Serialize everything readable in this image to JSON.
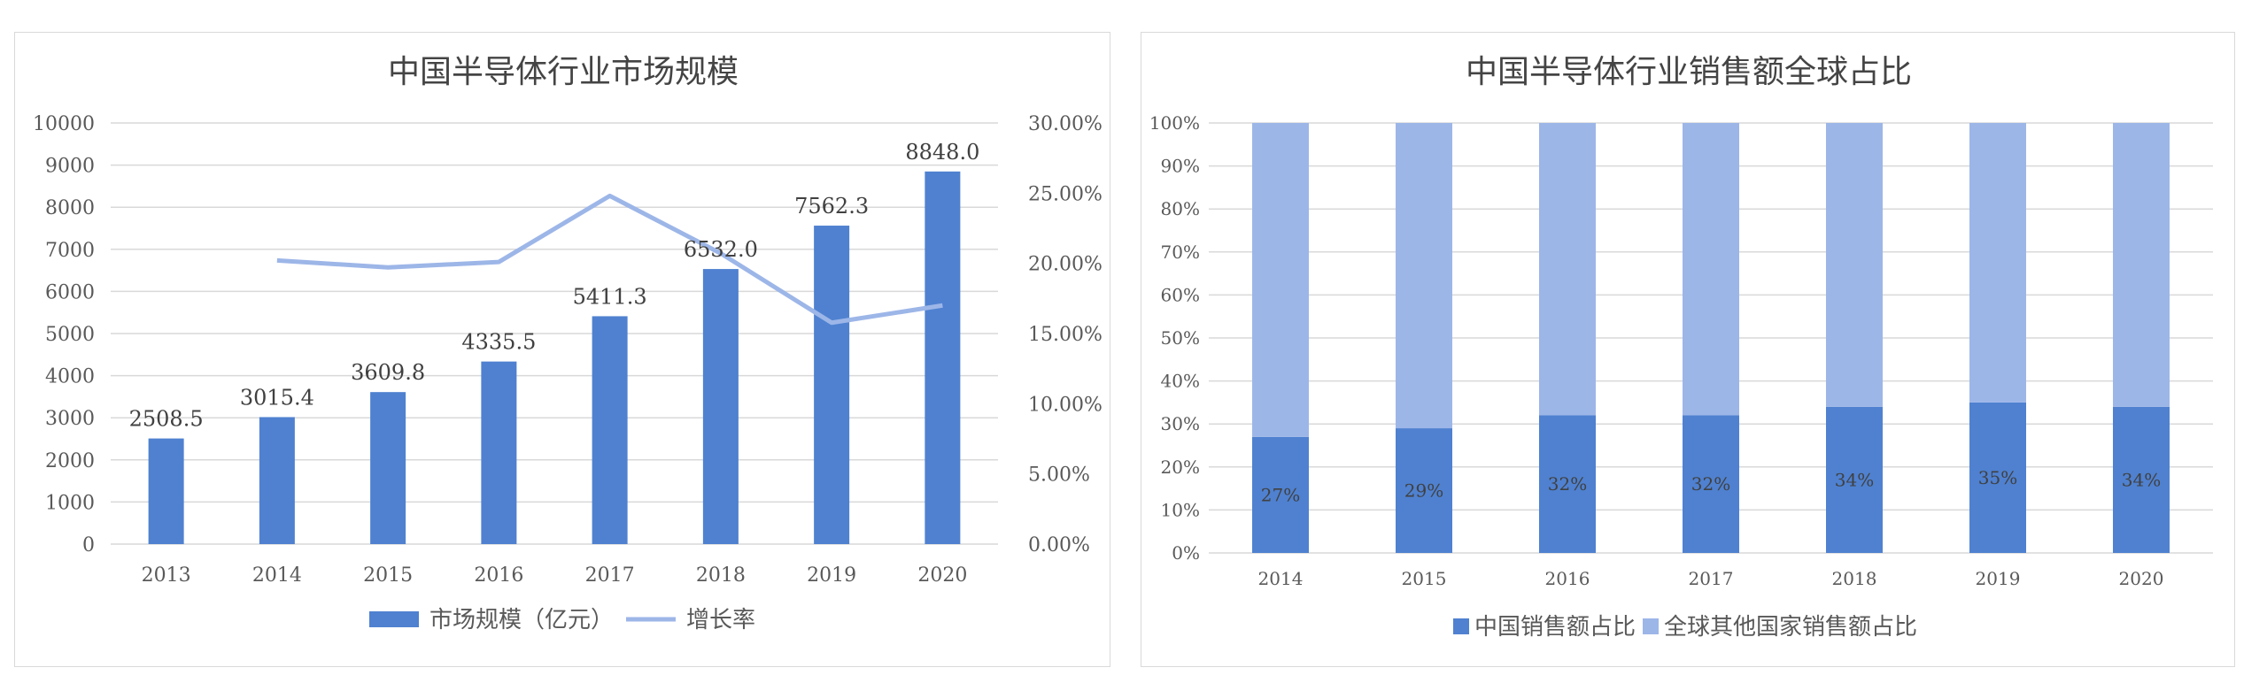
{
  "chart_data": [
    {
      "type": "bar",
      "title": "中国半导体行业市场规模",
      "categories": [
        "2013",
        "2014",
        "2015",
        "2016",
        "2017",
        "2018",
        "2019",
        "2020"
      ],
      "series": [
        {
          "name": "市场规模（亿元）",
          "type": "bar",
          "axis": "left",
          "values": [
            2508.5,
            3015.4,
            3609.8,
            4335.5,
            5411.3,
            6532.0,
            7562.3,
            8848.0
          ],
          "labels": [
            "2508.5",
            "3015.4",
            "3609.8",
            "4335.5",
            "5411.3",
            "6532.0",
            "7562.3",
            "8848.0"
          ],
          "color": "#4f81d0"
        },
        {
          "name": "增长率",
          "type": "line",
          "axis": "right",
          "values": [
            null,
            20.21,
            19.71,
            20.1,
            24.81,
            20.71,
            15.77,
            17.0
          ],
          "color": "#9db6e8"
        }
      ],
      "y_left": {
        "min": 0,
        "max": 10000,
        "step": 1000,
        "ticks": [
          "0",
          "1000",
          "2000",
          "3000",
          "4000",
          "5000",
          "6000",
          "7000",
          "8000",
          "9000",
          "10000"
        ]
      },
      "y_right": {
        "min": 0,
        "max": 30,
        "step": 5,
        "ticks": [
          "0.00%",
          "5.00%",
          "10.00%",
          "15.00%",
          "20.00%",
          "25.00%",
          "30.00%"
        ]
      },
      "grid": true,
      "legend": "bottom"
    },
    {
      "type": "bar",
      "stacked": true,
      "title": "中国半导体行业销售额全球占比",
      "categories": [
        "2014",
        "2015",
        "2016",
        "2017",
        "2018",
        "2019",
        "2020"
      ],
      "series": [
        {
          "name": "中国销售额占比",
          "values": [
            27,
            29,
            32,
            32,
            34,
            35,
            34
          ],
          "labels": [
            "27%",
            "29%",
            "32%",
            "32%",
            "34%",
            "35%",
            "34%"
          ],
          "color": "#4f81d0"
        },
        {
          "name": "全球其他国家销售额占比",
          "values": [
            73,
            71,
            68,
            68,
            66,
            65,
            66
          ],
          "color": "#9db6e8"
        }
      ],
      "y": {
        "min": 0,
        "max": 100,
        "step": 10,
        "ticks": [
          "0%",
          "10%",
          "20%",
          "30%",
          "40%",
          "50%",
          "60%",
          "70%",
          "80%",
          "90%",
          "100%"
        ]
      },
      "grid": true,
      "legend": "bottom"
    }
  ]
}
